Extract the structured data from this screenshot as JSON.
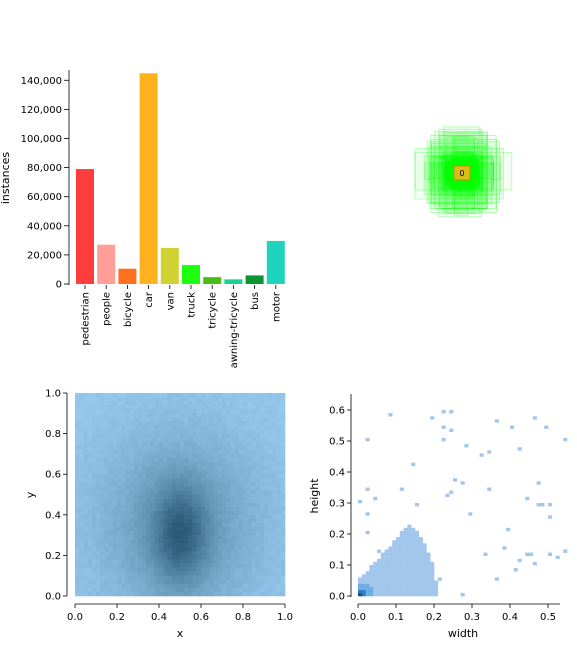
{
  "chart_data": [
    {
      "type": "bar",
      "ylabel": "instances",
      "categories": [
        "pedestrian",
        "people",
        "bicycle",
        "car",
        "van",
        "truck",
        "tricycle",
        "awning-tricycle",
        "bus",
        "motor"
      ],
      "values": [
        79000,
        27000,
        10500,
        144800,
        24800,
        13000,
        4700,
        3200,
        5900,
        29600
      ],
      "colors": [
        "#ff3d3d",
        "#ff9d97",
        "#ff701f",
        "#ffb21d",
        "#cfd231",
        "#1cff0f",
        "#48bf14",
        "#1ad291",
        "#0c9432",
        "#1fd4bd"
      ],
      "ylim": [
        0,
        145000
      ],
      "yticks": [
        0,
        20000,
        40000,
        60000,
        80000,
        100000,
        120000,
        140000
      ],
      "ytick_labels": [
        "0",
        "20,000",
        "40,000",
        "60,000",
        "80,000",
        "100,000",
        "120,000",
        "140,000"
      ]
    },
    {
      "type": "box_overlay",
      "box_color": "#00ff00",
      "center_color": "#ffb21d",
      "center_label": "0"
    },
    {
      "type": "heatmap",
      "xlabel": "x",
      "ylabel": "y",
      "xlim": [
        0,
        1
      ],
      "ylim": [
        0,
        1
      ],
      "xticks": [
        "0.0",
        "0.2",
        "0.4",
        "0.6",
        "0.8",
        "1.0"
      ],
      "yticks": [
        "0.0",
        "0.2",
        "0.4",
        "0.6",
        "0.8",
        "1.0"
      ],
      "density_center": [
        0.5,
        0.3
      ],
      "color": "#2e8fd6"
    },
    {
      "type": "heatmap",
      "xlabel": "width",
      "ylabel": "height",
      "xlim": [
        0,
        0.55
      ],
      "ylim": [
        0,
        0.65
      ],
      "xticks": [
        "0.0",
        "0.1",
        "0.2",
        "0.3",
        "0.4",
        "0.5"
      ],
      "yticks": [
        "0.0",
        "0.1",
        "0.2",
        "0.3",
        "0.4",
        "0.5",
        "0.6"
      ],
      "color": "#a3c7ec"
    }
  ]
}
